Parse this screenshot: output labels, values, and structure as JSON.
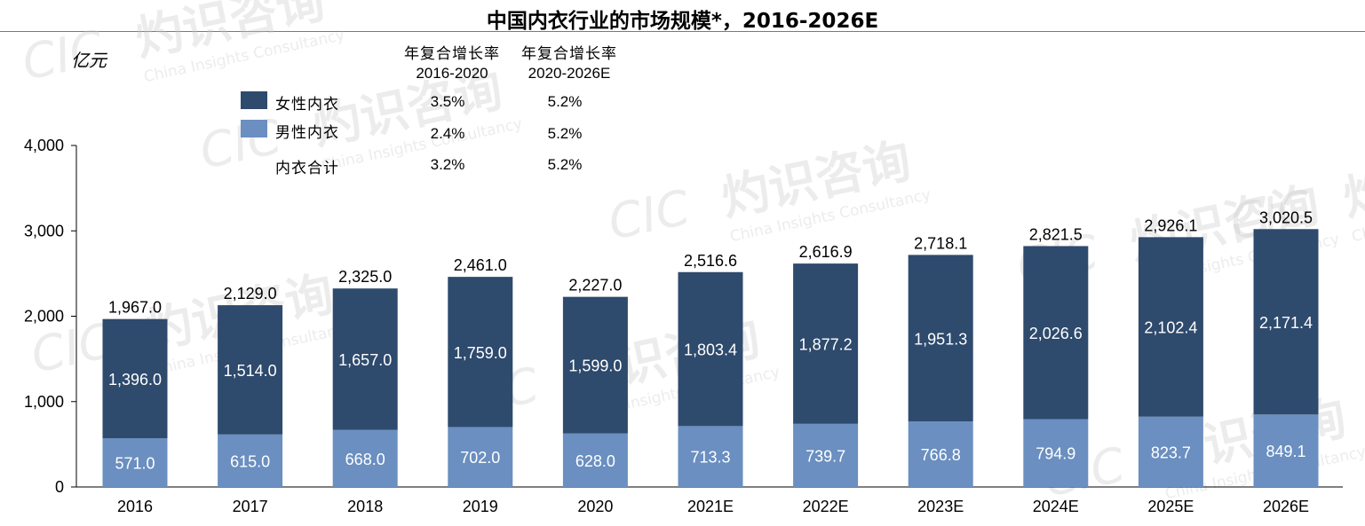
{
  "title": "中国内衣行业的市场规模*，2016-2026E",
  "unit": "亿元",
  "watermark": {
    "logo_text": "CIC",
    "zh_text": "灼识咨询",
    "en_text": "China Insights Consultancy"
  },
  "cagr_table": {
    "headers": [
      {
        "label": "年复合增长率",
        "period": "2016-2020"
      },
      {
        "label": "年复合增长率",
        "period": "2020-2026E"
      }
    ],
    "rows": [
      {
        "name": "女性内衣",
        "values": [
          "3.5%",
          "5.2%"
        ]
      },
      {
        "name": "男性内衣",
        "values": [
          "2.4%",
          "5.2%"
        ]
      },
      {
        "name": "内衣合计",
        "values": [
          "3.2%",
          "5.2%"
        ]
      }
    ]
  },
  "colors": {
    "female": "#2e4a6d",
    "male": "#6a8fc0",
    "axis": "#000000"
  },
  "chart_data": {
    "type": "bar",
    "stacked": true,
    "categories": [
      "2016",
      "2017",
      "2018",
      "2019",
      "2020",
      "2021E",
      "2022E",
      "2023E",
      "2024E",
      "2025E",
      "2026E"
    ],
    "series": [
      {
        "name": "男性内衣",
        "values": [
          571.0,
          615.0,
          668.0,
          702.0,
          628.0,
          713.3,
          739.7,
          766.8,
          794.9,
          823.7,
          849.1
        ],
        "labels": [
          "571.0",
          "615.0",
          "668.0",
          "702.0",
          "628.0",
          "713.3",
          "739.7",
          "766.8",
          "794.9",
          "823.7",
          "849.1"
        ]
      },
      {
        "name": "女性内衣",
        "values": [
          1396.0,
          1514.0,
          1657.0,
          1759.0,
          1599.0,
          1803.4,
          1877.2,
          1951.3,
          2026.6,
          2102.4,
          2171.4
        ],
        "labels": [
          "1,396.0",
          "1,514.0",
          "1,657.0",
          "1,759.0",
          "1,599.0",
          "1,803.4",
          "1,877.2",
          "1,951.3",
          "2,026.6",
          "2,102.4",
          "2,171.4"
        ]
      }
    ],
    "totals": [
      1967.0,
      2129.0,
      2325.0,
      2461.0,
      2227.0,
      2516.6,
      2616.9,
      2718.1,
      2821.5,
      2926.1,
      3020.5
    ],
    "total_labels": [
      "1,967.0",
      "2,129.0",
      "2,325.0",
      "2,461.0",
      "2,227.0",
      "2,516.6",
      "2,616.9",
      "2,718.1",
      "2,821.5",
      "2,926.1",
      "3,020.5"
    ],
    "ylim": [
      0,
      4000
    ],
    "yticks": [
      0,
      1000,
      2000,
      3000,
      4000
    ],
    "ytick_labels": [
      "0",
      "1,000",
      "2,000",
      "3,000",
      "4,000"
    ],
    "ylabel": "亿元",
    "legend": "top-left"
  }
}
